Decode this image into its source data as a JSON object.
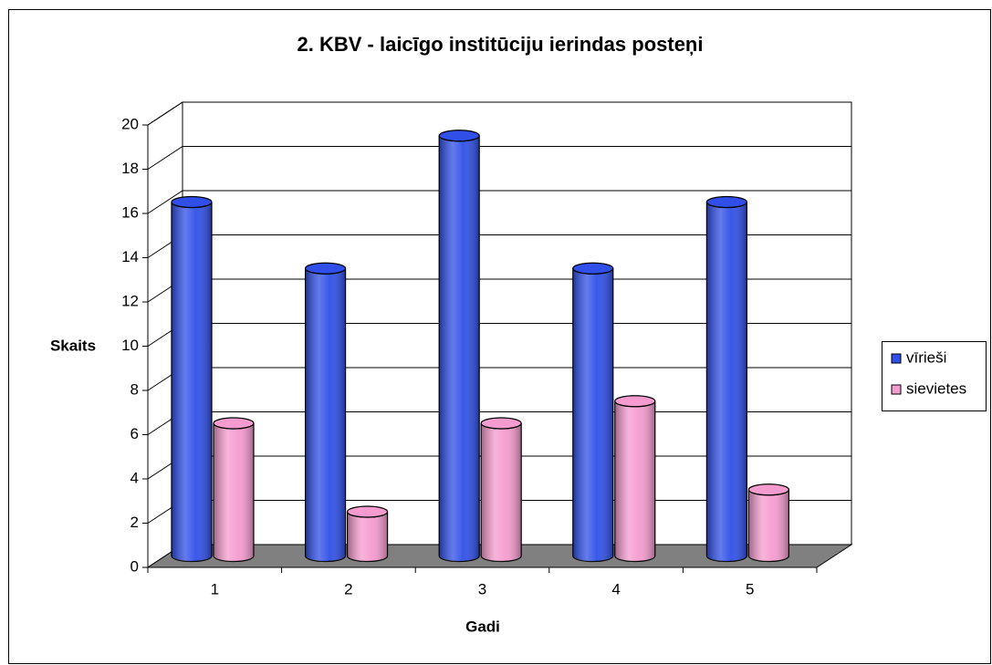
{
  "chart_data": {
    "type": "bar3d",
    "title": "2. KBV - laicīgo institūciju ierindas posteņi",
    "x_label": "Gadi",
    "y_label": "Skaits",
    "categories": [
      "1",
      "2",
      "3",
      "4",
      "5"
    ],
    "series": [
      {
        "name": "vīrieši",
        "color": "#2f4fe8",
        "values": [
          16,
          13,
          19,
          13,
          16
        ]
      },
      {
        "name": "sievietes",
        "color": "#f59bcf",
        "values": [
          6,
          2,
          6,
          7,
          3
        ]
      }
    ],
    "ylim": [
      0,
      20
    ],
    "yticks": [
      0,
      2,
      4,
      6,
      8,
      10,
      12,
      14,
      16,
      18,
      20
    ],
    "grid": true,
    "legend": "right"
  }
}
